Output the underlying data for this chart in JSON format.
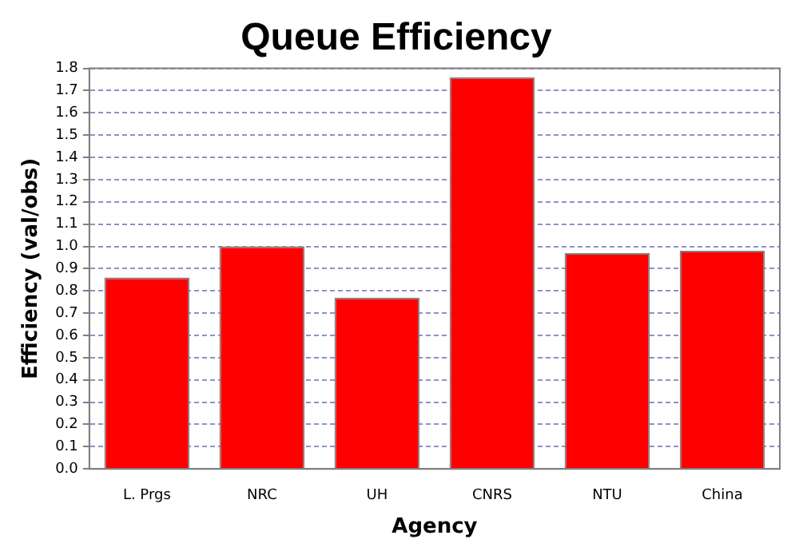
{
  "chart_data": {
    "type": "bar",
    "title": "Queue Efficiency",
    "xlabel": "Agency",
    "ylabel": "Efficiency (val/obs)",
    "categories": [
      "L. Prgs",
      "NRC",
      "UH",
      "CNRS",
      "NTU",
      "China"
    ],
    "values": [
      0.86,
      1.0,
      0.77,
      1.76,
      0.97,
      0.98
    ],
    "color": "#ff0000",
    "ylim": [
      0,
      1.8
    ],
    "yticks": [
      {
        "value": 0,
        "label": "0.0"
      },
      {
        "value": 0.1,
        "label": "0.1"
      },
      {
        "value": 0.2,
        "label": "0.2"
      },
      {
        "value": 0.3,
        "label": "0.3"
      },
      {
        "value": 0.4,
        "label": "0.4"
      },
      {
        "value": 0.5,
        "label": "0.5"
      },
      {
        "value": 0.6,
        "label": "0.6"
      },
      {
        "value": 0.7,
        "label": "0.7"
      },
      {
        "value": 0.8,
        "label": "0.8"
      },
      {
        "value": 0.9,
        "label": "0.9"
      },
      {
        "value": 1.0,
        "label": "1.0"
      },
      {
        "value": 1.1,
        "label": "1.1"
      },
      {
        "value": 1.2,
        "label": "1.2"
      },
      {
        "value": 1.3,
        "label": "1.3"
      },
      {
        "value": 1.4,
        "label": "1.4"
      },
      {
        "value": 1.5,
        "label": "1.5"
      },
      {
        "value": 1.6,
        "label": "1.6"
      },
      {
        "value": 1.7,
        "label": "1.7"
      },
      {
        "value": 1.8,
        "label": "1.8"
      }
    ],
    "grid": "y"
  }
}
